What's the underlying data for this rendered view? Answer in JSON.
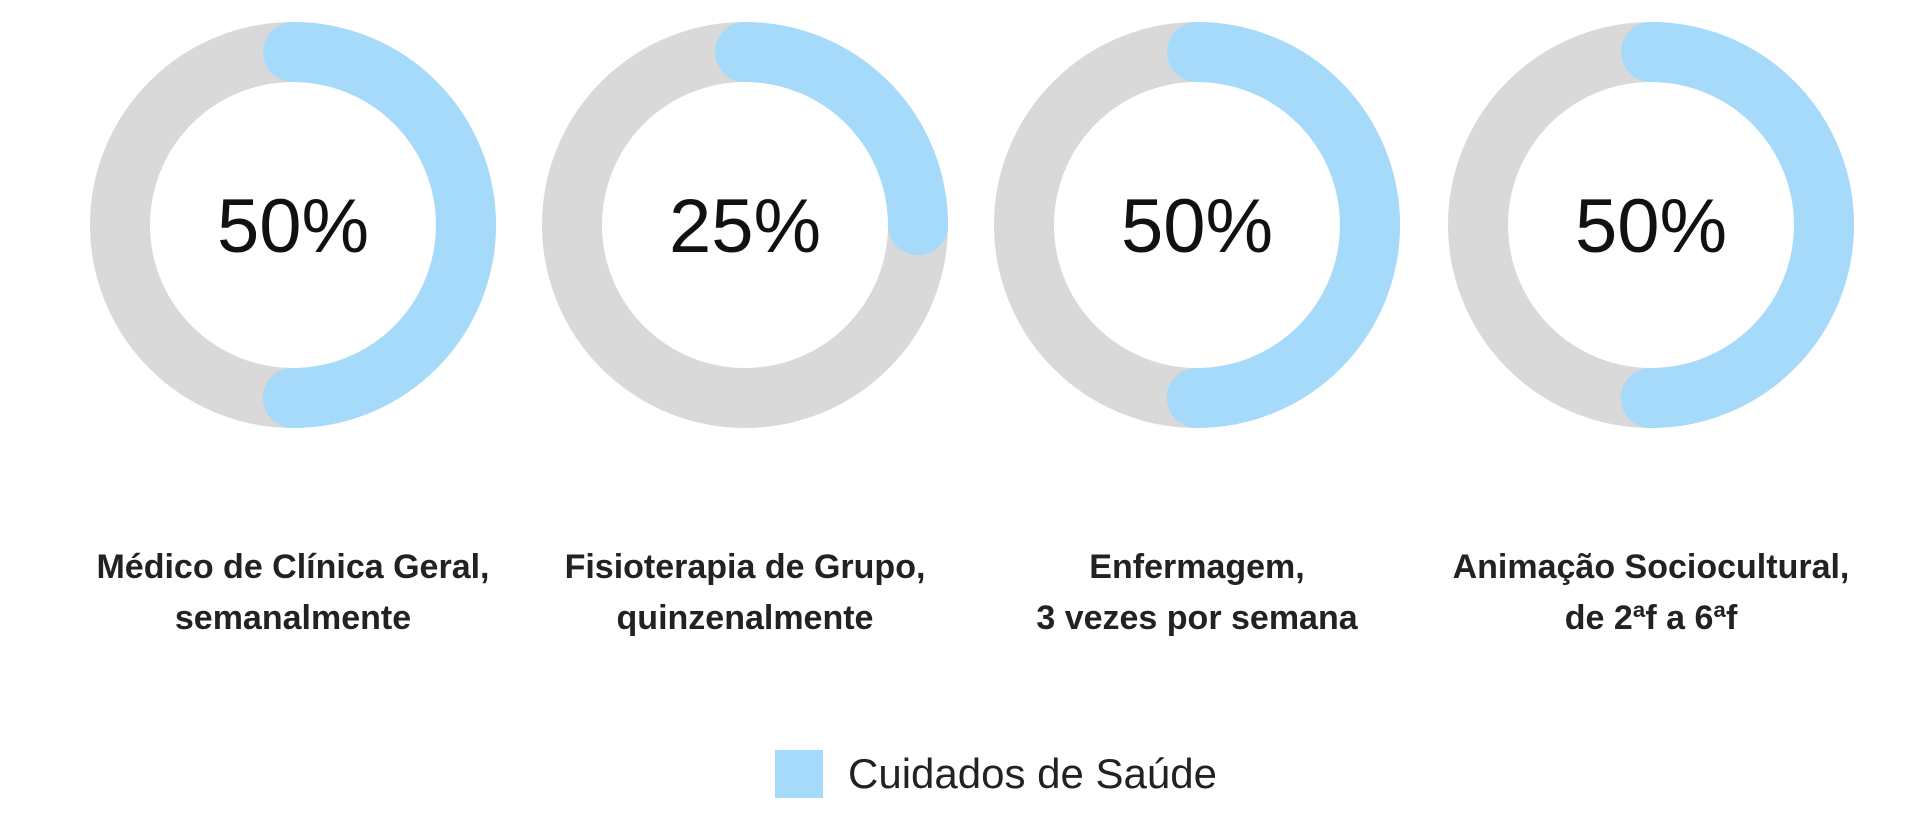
{
  "chart_data": {
    "type": "donut",
    "series": [
      {
        "name": "Cuidados de Saúde",
        "values": [
          50,
          25,
          50,
          50
        ]
      }
    ],
    "center_labels": [
      "50%",
      "25%",
      "50%",
      "50%"
    ],
    "categories": [
      [
        "Médico de Clínica Geral,",
        "semanalmente"
      ],
      [
        "Fisioterapia de Grupo,",
        "quinzenalmente"
      ],
      [
        "Enfermagem,",
        "3 vezes por semana"
      ],
      [
        "Animação Sociocultural,",
        "de 2ªf a 6ªf"
      ]
    ],
    "max": 100,
    "legend": {
      "label": "Cuidados de Saúde",
      "position": "bottom-center"
    },
    "colors": {
      "filled": "#a5dafa",
      "track": "#d9d9d9",
      "text": "#111111"
    }
  }
}
